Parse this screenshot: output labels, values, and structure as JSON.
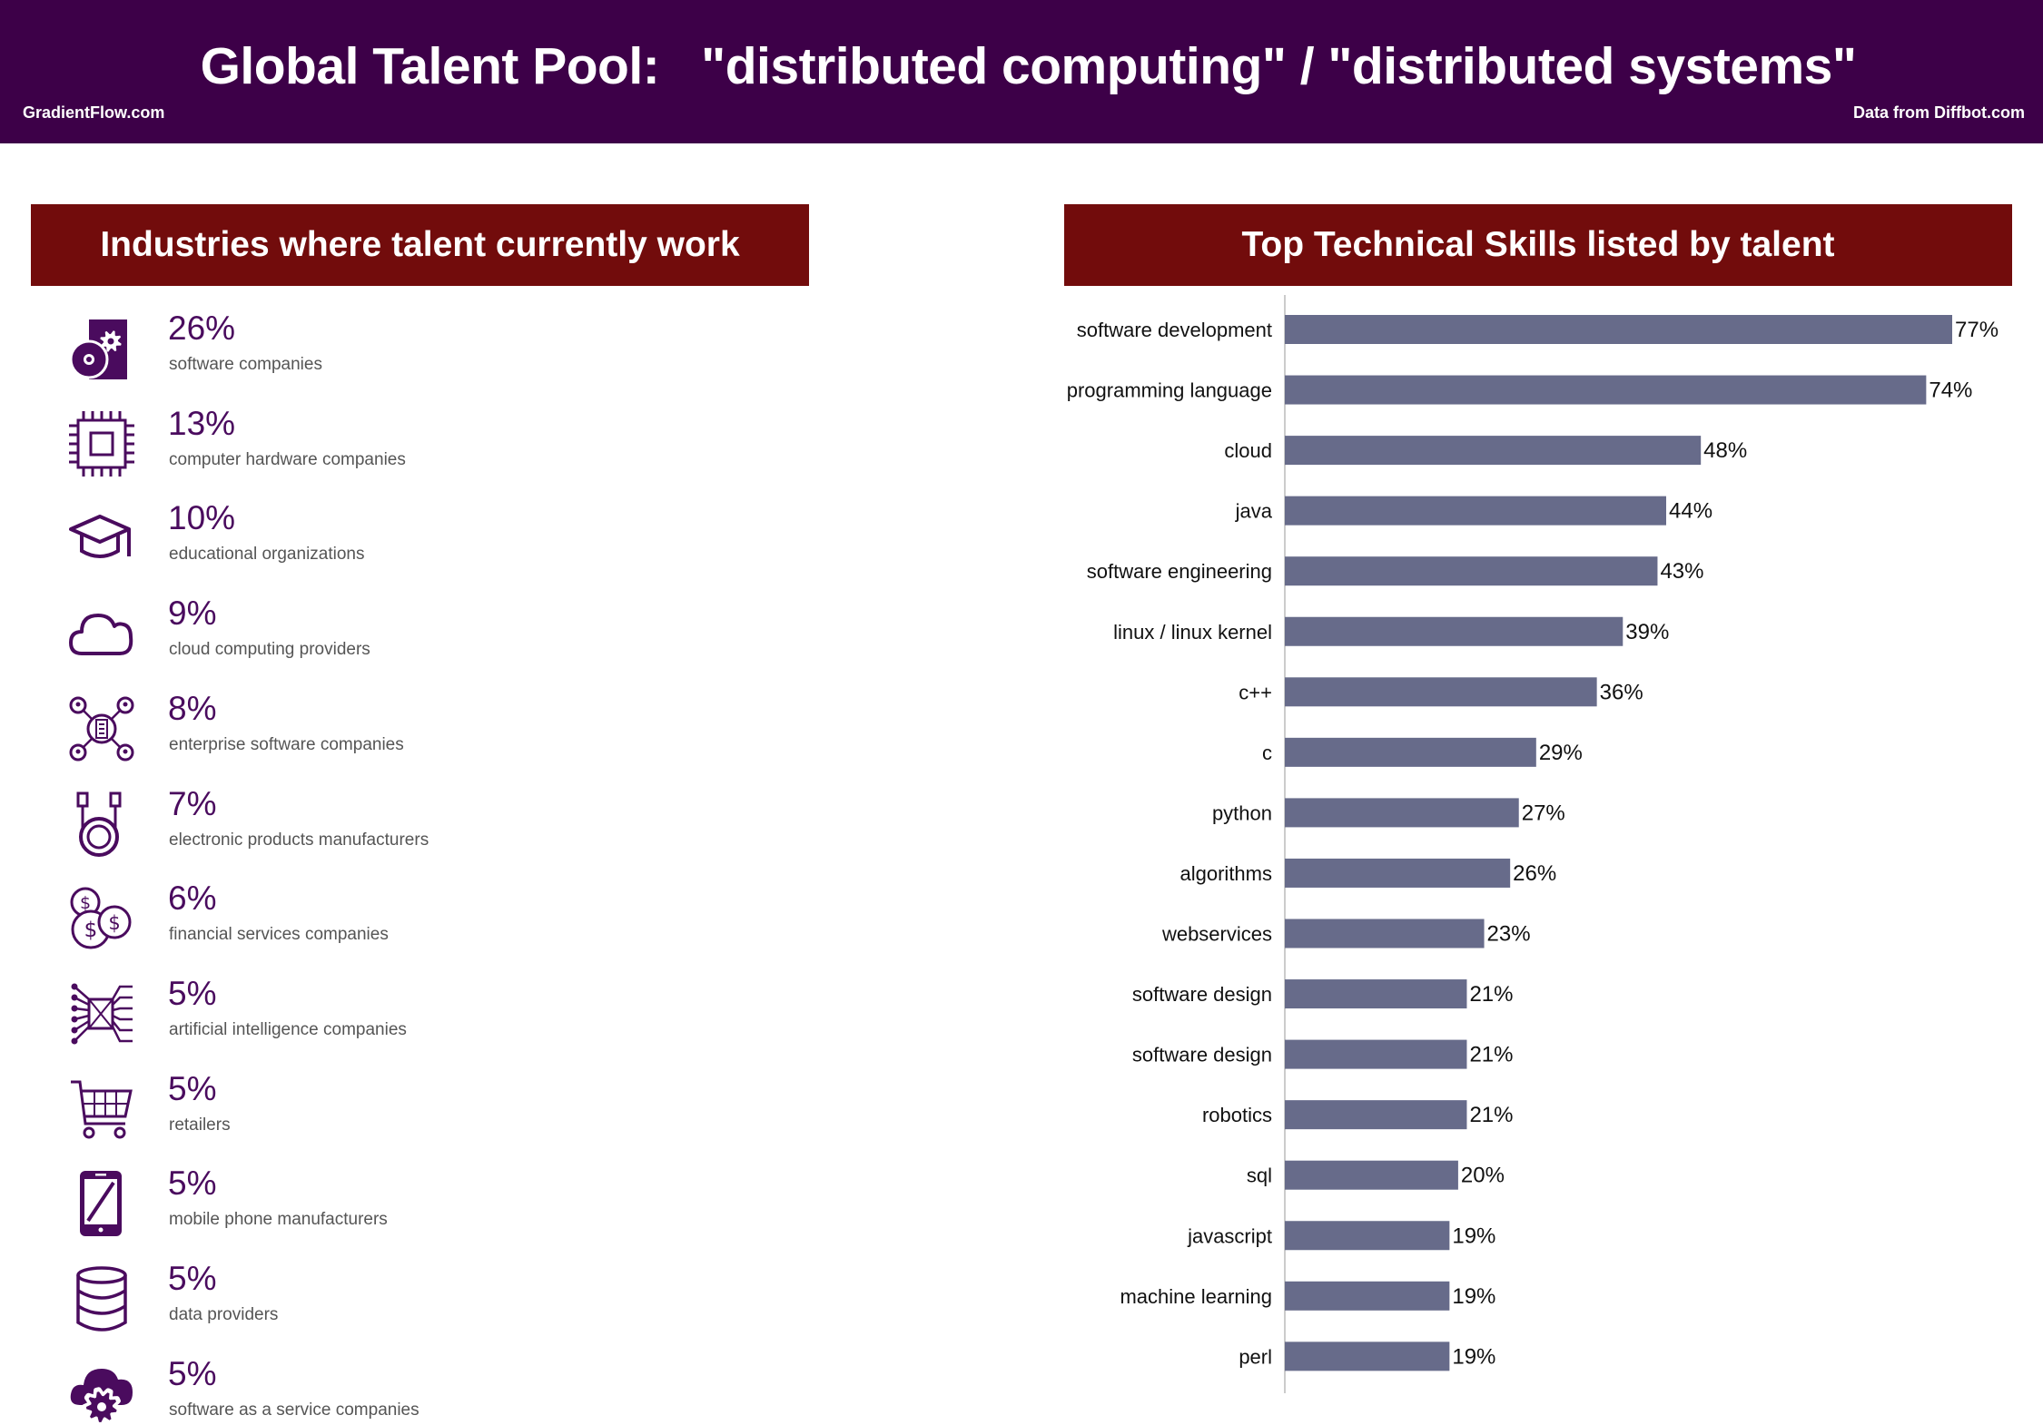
{
  "header": {
    "title": "Global Talent Pool:   \"distributed computing\" / \"distributed systems\"",
    "left_note": "GradientFlow.com",
    "right_note": "Data from Diffbot.com",
    "bg_color": "#3d0048"
  },
  "industries": {
    "title": "Industries where talent currently work",
    "header_color": "#720c0c",
    "accent_color": "#4a0b5e",
    "items": [
      {
        "pct": "26%",
        "label": "software companies",
        "icon": "software-gear-icon"
      },
      {
        "pct": "13%",
        "label": "computer hardware companies",
        "icon": "cpu-chip-icon"
      },
      {
        "pct": "10%",
        "label": "educational organizations",
        "icon": "graduation-cap-icon"
      },
      {
        "pct": "9%",
        "label": "cloud computing providers",
        "icon": "cloud-icon"
      },
      {
        "pct": "8%",
        "label": "enterprise software companies",
        "icon": "enterprise-network-icon"
      },
      {
        "pct": "7%",
        "label": "electronic products manufacturers",
        "icon": "cable-plug-icon"
      },
      {
        "pct": "6%",
        "label": "financial services companies",
        "icon": "dollar-coins-icon"
      },
      {
        "pct": "5%",
        "label": "artificial intelligence companies",
        "icon": "ai-circuit-icon"
      },
      {
        "pct": "5%",
        "label": "retailers",
        "icon": "shopping-cart-icon"
      },
      {
        "pct": "5%",
        "label": "mobile phone manufacturers",
        "icon": "mobile-phone-icon"
      },
      {
        "pct": "5%",
        "label": "data providers",
        "icon": "database-icon"
      },
      {
        "pct": "5%",
        "label": "software as a service companies",
        "icon": "cloud-gear-icon"
      }
    ]
  },
  "chart_data": {
    "type": "bar",
    "orientation": "horizontal",
    "title": "Top Technical Skills listed by talent",
    "categories": [
      "software development",
      "programming language",
      "cloud",
      "java",
      "software engineering",
      "linux / linux kernel",
      "c++",
      "c",
      "python",
      "algorithms",
      "webservices",
      "software design",
      "software design",
      "robotics",
      "sql",
      "javascript",
      "machine learning",
      "perl"
    ],
    "values": [
      77,
      74,
      48,
      44,
      43,
      39,
      36,
      29,
      27,
      26,
      23,
      21,
      21,
      21,
      20,
      19,
      19,
      19
    ],
    "value_labels": [
      "77%",
      "74%",
      "48%",
      "44%",
      "43%",
      "39%",
      "36%",
      "29%",
      "27%",
      "26%",
      "23%",
      "21%",
      "21%",
      "21%",
      "20%",
      "19%",
      "19%",
      "19%"
    ],
    "xlim": [
      0,
      77
    ],
    "bar_color": "#676b8a",
    "grid": false,
    "legend": "none"
  }
}
